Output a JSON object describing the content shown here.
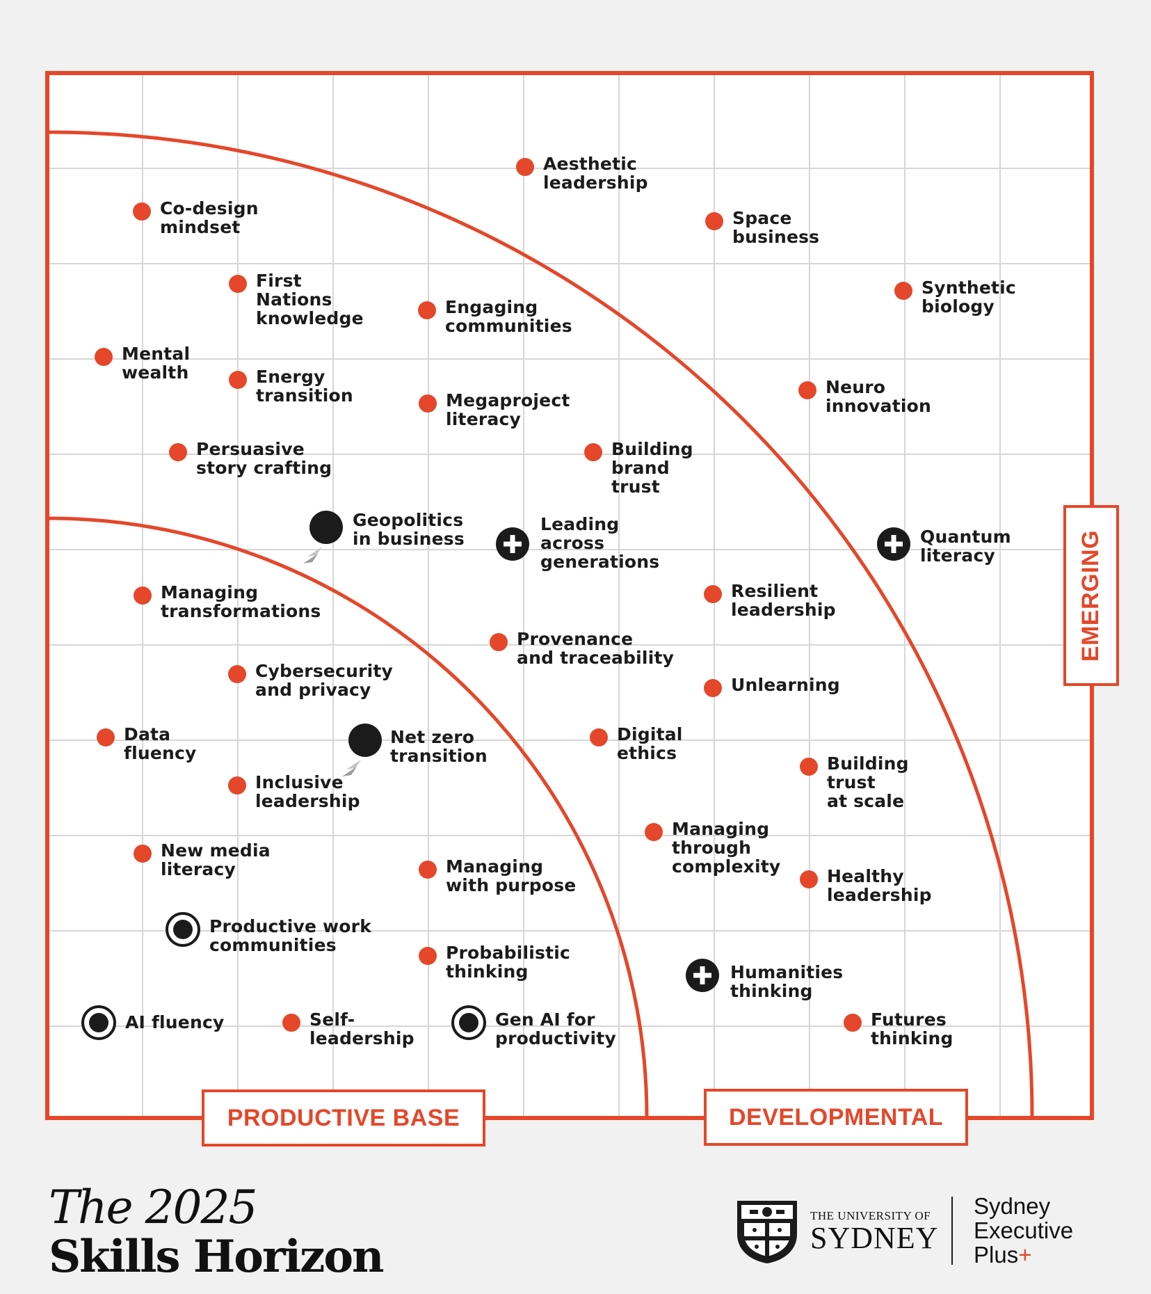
{
  "zones": {
    "productive_base": "PRODUCTIVE BASE",
    "developmental": "DEVELOPMENTAL",
    "emerging": "EMERGING"
  },
  "title": {
    "line1": "The 2025",
    "line2": "Skills Horizon"
  },
  "branding": {
    "university_line1": "THE UNIVERSITY OF",
    "university_line2": "SYDNEY",
    "program_line1": "Sydney",
    "program_line2": "Executive",
    "program_line3": "Plus",
    "program_plus": "+"
  },
  "colors": {
    "accent": "#e4472a",
    "dark": "#1b1b1b",
    "grid": "#d6d6d6",
    "background": "#f1f1f1"
  },
  "skills": [
    {
      "id": "aesthetic-leadership",
      "label": "Aesthetic\nleadership",
      "marker": "red-dot"
    },
    {
      "id": "co-design-mindset",
      "label": "Co-design\nmindset",
      "marker": "red-dot"
    },
    {
      "id": "space-business",
      "label": "Space\nbusiness",
      "marker": "red-dot"
    },
    {
      "id": "first-nations-knowledge",
      "label": "First\nNations\nknowledge",
      "marker": "red-dot"
    },
    {
      "id": "engaging-communities",
      "label": "Engaging\ncommunities",
      "marker": "red-dot"
    },
    {
      "id": "synthetic-biology",
      "label": "Synthetic\nbiology",
      "marker": "red-dot"
    },
    {
      "id": "mental-wealth",
      "label": "Mental\nwealth",
      "marker": "red-dot"
    },
    {
      "id": "energy-transition",
      "label": "Energy\ntransition",
      "marker": "red-dot"
    },
    {
      "id": "megaproject-literacy",
      "label": "Megaproject\nliteracy",
      "marker": "red-dot"
    },
    {
      "id": "neuro-innovation",
      "label": "Neuro\ninnovation",
      "marker": "red-dot"
    },
    {
      "id": "persuasive-story-crafting",
      "label": "Persuasive\nstory crafting",
      "marker": "red-dot"
    },
    {
      "id": "building-brand-trust",
      "label": "Building\nbrand\ntrust",
      "marker": "red-dot"
    },
    {
      "id": "geopolitics-in-business",
      "label": "Geopolitics\nin business",
      "marker": "moving-dot"
    },
    {
      "id": "leading-across-generations",
      "label": "Leading\nacross\ngenerations",
      "marker": "new-plus"
    },
    {
      "id": "quantum-literacy",
      "label": "Quantum\nliteracy",
      "marker": "new-plus"
    },
    {
      "id": "managing-transformations",
      "label": "Managing\ntransformations",
      "marker": "red-dot"
    },
    {
      "id": "resilient-leadership",
      "label": "Resilient\nleadership",
      "marker": "red-dot"
    },
    {
      "id": "provenance-and-traceability",
      "label": "Provenance\nand traceability",
      "marker": "red-dot"
    },
    {
      "id": "cybersecurity-and-privacy",
      "label": "Cybersecurity\nand privacy",
      "marker": "red-dot"
    },
    {
      "id": "unlearning",
      "label": "Unlearning",
      "marker": "red-dot"
    },
    {
      "id": "data-fluency",
      "label": "Data\nfluency",
      "marker": "red-dot"
    },
    {
      "id": "net-zero-transition",
      "label": "Net zero\ntransition",
      "marker": "moving-dot"
    },
    {
      "id": "digital-ethics",
      "label": "Digital\nethics",
      "marker": "red-dot"
    },
    {
      "id": "building-trust-at-scale",
      "label": "Building\ntrust\nat scale",
      "marker": "red-dot"
    },
    {
      "id": "inclusive-leadership",
      "label": "Inclusive\nleadership",
      "marker": "red-dot"
    },
    {
      "id": "managing-through-complexity",
      "label": "Managing\nthrough\ncomplexity",
      "marker": "red-dot"
    },
    {
      "id": "new-media-literacy",
      "label": "New media\nliteracy",
      "marker": "red-dot"
    },
    {
      "id": "managing-with-purpose",
      "label": "Managing\nwith purpose",
      "marker": "red-dot"
    },
    {
      "id": "healthy-leadership",
      "label": "Healthy\nleadership",
      "marker": "red-dot"
    },
    {
      "id": "productive-work-communities",
      "label": "Productive work\ncommunities",
      "marker": "ringed-dot"
    },
    {
      "id": "probabilistic-thinking",
      "label": "Probabilistic\nthinking",
      "marker": "red-dot"
    },
    {
      "id": "humanities-thinking",
      "label": "Humanities\nthinking",
      "marker": "new-plus"
    },
    {
      "id": "ai-fluency",
      "label": "AI fluency",
      "marker": "ringed-dot"
    },
    {
      "id": "self-leadership",
      "label": "Self-\nleadership",
      "marker": "red-dot"
    },
    {
      "id": "gen-ai-for-productivity",
      "label": "Gen AI for\nproductivity",
      "marker": "ringed-dot"
    },
    {
      "id": "futures-thinking",
      "label": "Futures\nthinking",
      "marker": "red-dot"
    }
  ]
}
